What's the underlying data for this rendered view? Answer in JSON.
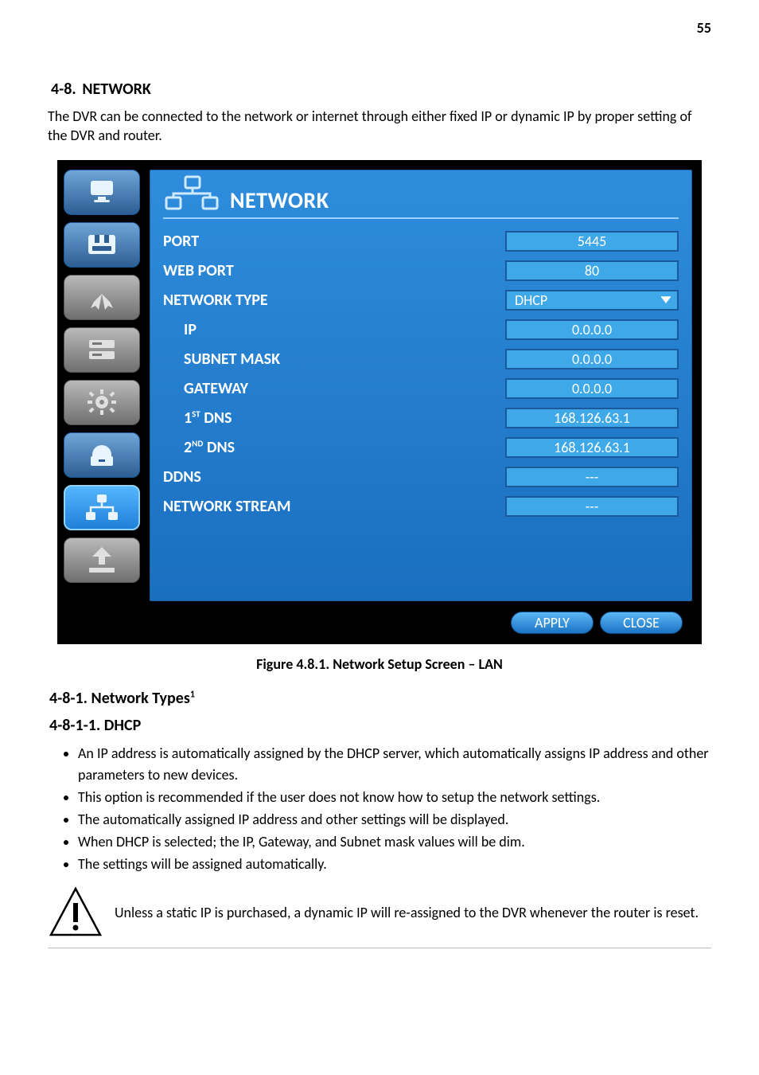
{
  "page": {
    "number": "55"
  },
  "section": {
    "number": "4-8.",
    "title": "NETWORK",
    "intro": "The DVR can be connected to the network or internet through either fixed IP or dynamic IP by proper setting of the DVR and router."
  },
  "figure": {
    "caption_prefix": "Figure 4.8.1. Network Setup Screen ",
    "caption_suffix": " LAN"
  },
  "panel": {
    "title": "NETWORK",
    "rows": [
      {
        "key": "port",
        "label": "PORT",
        "value": "5445",
        "sub": false,
        "select": false
      },
      {
        "key": "webport",
        "label": "WEB PORT",
        "value": "80",
        "sub": false,
        "select": false
      },
      {
        "key": "nettype",
        "label": "NETWORK TYPE",
        "value": "DHCP",
        "sub": false,
        "select": true
      },
      {
        "key": "ip",
        "label": "IP",
        "value": "0.0.0.0",
        "sub": true,
        "select": false
      },
      {
        "key": "subnet",
        "label": "SUBNET MASK",
        "value": "0.0.0.0",
        "sub": true,
        "select": false
      },
      {
        "key": "gateway",
        "label": "GATEWAY",
        "value": "0.0.0.0",
        "sub": true,
        "select": false
      },
      {
        "key": "dns1",
        "label_html": "1<sup>ST</sup> DNS",
        "value": "168.126.63.1",
        "sub": true,
        "select": false
      },
      {
        "key": "dns2",
        "label_html": "2<sup>ND</sup> DNS",
        "value": "168.126.63.1",
        "sub": true,
        "select": false
      },
      {
        "key": "ddns",
        "label": "DDNS",
        "value": "---",
        "sub": false,
        "select": false
      },
      {
        "key": "stream",
        "label": "NETWORK STREAM",
        "value": "---",
        "sub": false,
        "select": false
      }
    ],
    "buttons": {
      "apply": "APPLY",
      "close": "CLOSE"
    }
  },
  "under": {
    "number": "4-8-1.",
    "title": "Network Types",
    "heading_html": "4-8-1. Network Types<sup>1</sup>",
    "subheading": "4-8-1-1. DHCP",
    "bullets": [
      "An IP address is automatically assigned by the DHCP server, which automatically assigns IP address and other parameters to new devices.",
      "This option is recommended if the user does not know how to setup the network settings.",
      "The automatically assigned IP address and other settings will be displayed.",
      "When DHCP is selected; the IP, Gateway, and Subnet mask values will be dim.",
      "The settings will be assigned automatically."
    ],
    "warning": "Unless a static IP is purchased, a dynamic IP will re-assigned to the DVR whenever the router is reset."
  },
  "style": {
    "colors": {
      "panel_grad_top": "#2f8cdc",
      "panel_grad_bot": "#1a6fbf",
      "field_bg": "#3fa8e8",
      "field_border": "#1a5a9a",
      "pill_top": "#5cb7f4",
      "pill_bot": "#1a73c4",
      "side_grad_top": "#6fa5d8",
      "side_grad_bot": "#2d5e93",
      "side_dim_top": "#b9b9b9",
      "side_dim_bot": "#6f6f6f",
      "active_top": "#55b7ff",
      "active_bot": "#1e7fd8"
    },
    "dimensions": {
      "screenshot_w": 810,
      "screenshot_h": 608
    },
    "fontsizes": {
      "panel_title": 28,
      "row_label": 20,
      "field": 18,
      "body": 18,
      "heading": 20
    }
  }
}
